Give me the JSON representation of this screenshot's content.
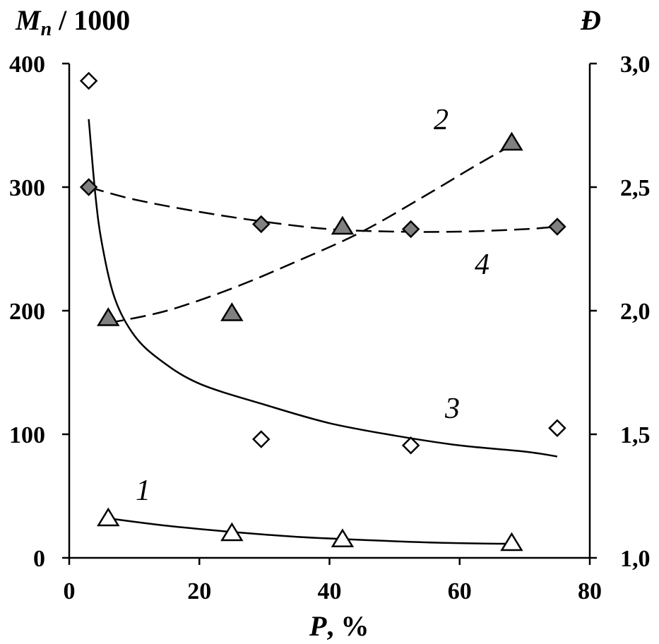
{
  "chart_data": {
    "type": "scatter",
    "title": "",
    "xlabel": "P, %",
    "ylabel_left": "M_n / 1000",
    "ylabel_right": "Đ",
    "xlim": [
      0,
      80
    ],
    "ylim_left": [
      0,
      400
    ],
    "ylim_right": [
      1.0,
      3.0
    ],
    "x_ticks": [
      "0",
      "20",
      "40",
      "60",
      "80"
    ],
    "y_ticks_left": [
      "0",
      "100",
      "200",
      "300",
      "400"
    ],
    "y_ticks_right": [
      "1,0",
      "1,5",
      "2,0",
      "2,5",
      "3,0"
    ],
    "series": [
      {
        "name": "1",
        "axis": "left",
        "marker": "triangle-open",
        "x": [
          6,
          25,
          42,
          68
        ],
        "y": [
          32,
          20,
          15,
          12
        ],
        "fit": "solid",
        "fit_x": [
          6,
          15,
          25,
          35,
          45,
          55,
          65,
          68
        ],
        "fit_y": [
          32,
          26,
          21,
          17,
          14.5,
          12.5,
          11.5,
          11.5
        ]
      },
      {
        "name": "2",
        "axis": "right",
        "marker": "triangle-filled",
        "x": [
          6,
          25,
          42,
          68
        ],
        "y": [
          1.97,
          1.99,
          2.34,
          2.68
        ],
        "fit": "dashed",
        "fit_x": [
          6,
          15,
          25,
          35,
          45,
          55,
          62,
          68
        ],
        "fit_y": [
          1.95,
          2.0,
          2.09,
          2.2,
          2.32,
          2.47,
          2.58,
          2.67
        ]
      },
      {
        "name": "3",
        "axis": "left",
        "marker": "diamond-open",
        "x": [
          3,
          29.5,
          52.5,
          75
        ],
        "y": [
          386,
          96,
          91,
          105
        ],
        "fit": "solid",
        "fit_x": [
          3,
          4,
          5,
          7,
          10,
          14,
          20,
          30,
          40,
          50,
          60,
          70,
          75
        ],
        "fit_y": [
          355,
          295,
          255,
          210,
          180,
          160,
          141,
          124,
          109,
          99,
          91,
          86,
          82
        ]
      },
      {
        "name": "4",
        "axis": "right",
        "marker": "diamond-filled",
        "x": [
          3,
          29.5,
          52.5,
          75
        ],
        "y": [
          2.5,
          2.35,
          2.33,
          2.34
        ],
        "fit": "dashed",
        "fit_x": [
          3,
          10,
          20,
          30,
          40,
          50,
          60,
          70,
          75
        ],
        "fit_y": [
          2.5,
          2.45,
          2.4,
          2.36,
          2.33,
          2.32,
          2.32,
          2.33,
          2.34
        ]
      }
    ],
    "curve_labels": [
      "1",
      "2",
      "3",
      "4"
    ]
  }
}
